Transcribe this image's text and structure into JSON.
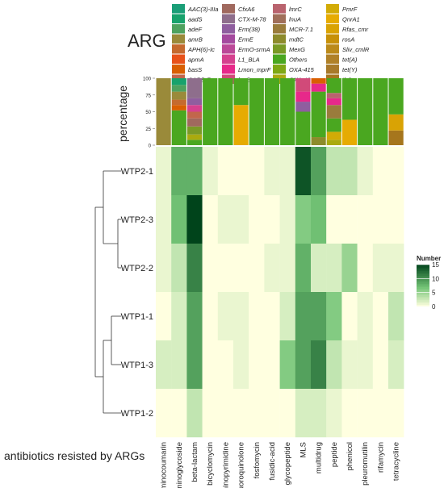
{
  "chart_data": {
    "type": "heatmap",
    "legend_title": "ARG",
    "y_title": "percentage",
    "x_title": "antibiotics resisted by ARGs",
    "categories": [
      "aminocoumarin",
      "aminoglycoside",
      "beta-lactam",
      "bicyclomycin",
      "diaminopyrimidine",
      "fluoroquinolone",
      "fosfomycin",
      "fusidic-acid",
      "glycopeptide",
      "MLS",
      "multidrug",
      "peptide",
      "phenicol",
      "pleuromutilin",
      "rifamycin",
      "tetracycline"
    ],
    "samples": [
      "WTP2-1",
      "WTP2-3",
      "WTP2-2",
      "WTP1-1",
      "WTP1-3",
      "WTP1-2"
    ],
    "values": [
      [
        1,
        8,
        8,
        1,
        0,
        0,
        0,
        1,
        1,
        14,
        9,
        3,
        3,
        1,
        0,
        0
      ],
      [
        1,
        7,
        15,
        0,
        1,
        1,
        0,
        0,
        1,
        6,
        7,
        0,
        0,
        0,
        0,
        0
      ],
      [
        1,
        3,
        11,
        0,
        0,
        0,
        0,
        1,
        1,
        8,
        2,
        2,
        5,
        0,
        1,
        1
      ],
      [
        0,
        2,
        9,
        0,
        1,
        1,
        0,
        0,
        2,
        9,
        9,
        6,
        0,
        1,
        0,
        3
      ],
      [
        2,
        2,
        9,
        0,
        0,
        1,
        0,
        0,
        6,
        9,
        11,
        3,
        1,
        1,
        0,
        2
      ],
      [
        0,
        0,
        3,
        0,
        0,
        0,
        0,
        0,
        0,
        2,
        2,
        1,
        0,
        0,
        0,
        0
      ]
    ],
    "color_scale": {
      "title": "Number",
      "ticks": [
        0,
        5,
        10,
        15
      ],
      "min": 0,
      "max": 15,
      "low": "#ffffe0",
      "high": "#00441b"
    },
    "bar_axis": {
      "ticks": [
        0,
        25,
        50,
        75,
        100
      ]
    },
    "genes": [
      {
        "name": "AAC(3)-IIIa",
        "color": "#1a9e77"
      },
      {
        "name": "aadS",
        "color": "#17a26c"
      },
      {
        "name": "adeF",
        "color": "#4ea25f"
      },
      {
        "name": "amrB",
        "color": "#9a8a3a"
      },
      {
        "name": "APH(6)-Ic",
        "color": "#c56a2f"
      },
      {
        "name": "apmA",
        "color": "#e8521a"
      },
      {
        "name": "basS",
        "color": "#d95f02"
      },
      {
        "name": "CARB-7",
        "color": "#c2664c"
      },
      {
        "name": "CfxA6",
        "color": "#a0695e"
      },
      {
        "name": "CTX-M-78",
        "color": "#8e6e8c"
      },
      {
        "name": "Erm(38)",
        "color": "#8f5e9f"
      },
      {
        "name": "ErmE",
        "color": "#a4499e"
      },
      {
        "name": "ErmO-srmA",
        "color": "#bb4898"
      },
      {
        "name": "L1_BLA",
        "color": "#d5418f"
      },
      {
        "name": "Lmon_mprF",
        "color": "#e7298a"
      },
      {
        "name": "lmrB",
        "color": "#d14a79"
      },
      {
        "name": "lmrC",
        "color": "#b9636e"
      },
      {
        "name": "lnuA",
        "color": "#a06f5a"
      },
      {
        "name": "MCR-7.1",
        "color": "#9a7c3c"
      },
      {
        "name": "mdtC",
        "color": "#8d8b2c"
      },
      {
        "name": "MexG",
        "color": "#7a9a26"
      },
      {
        "name": "Others",
        "color": "#4aa720"
      },
      {
        "name": "OXA-415",
        "color": "#7fa814"
      },
      {
        "name": "OXA-42",
        "color": "#aaaa0f"
      },
      {
        "name": "PmrF",
        "color": "#d2ab06"
      },
      {
        "name": "QnrA1",
        "color": "#e6ab02"
      },
      {
        "name": "Rfas_cmr",
        "color": "#d9a304"
      },
      {
        "name": "rosA",
        "color": "#c79109"
      },
      {
        "name": "Sliv_cmlR",
        "color": "#bb8a1a"
      },
      {
        "name": "tet(A)",
        "color": "#b08128"
      },
      {
        "name": "tet(Y)",
        "color": "#a87a2a"
      },
      {
        "name": "tlrC",
        "color": "#a6761d"
      }
    ],
    "stacks": [
      [
        [
          "amrB",
          100
        ]
      ],
      [
        [
          "Others",
          52
        ],
        [
          "basS",
          8
        ],
        [
          "APH(6)-Ic",
          8
        ],
        [
          "amrB",
          12
        ],
        [
          "adeF",
          10
        ],
        [
          "aadS",
          10
        ]
      ],
      [
        [
          "Others",
          8
        ],
        [
          "OXA-42",
          8
        ],
        [
          "MexG",
          12
        ],
        [
          "CfxA6",
          12
        ],
        [
          "CARB-7",
          10
        ],
        [
          "L1_BLA",
          10
        ],
        [
          "Erm(38)",
          10
        ],
        [
          "CTX-M-78",
          30
        ]
      ],
      [
        [
          "Others",
          100
        ]
      ],
      [
        [
          "Others",
          100
        ]
      ],
      [
        [
          "QnrA1",
          60
        ],
        [
          "Others",
          40
        ]
      ],
      [
        [
          "Others",
          100
        ]
      ],
      [
        [
          "Others",
          100
        ]
      ],
      [
        [
          "Others",
          100
        ]
      ],
      [
        [
          "Others",
          50
        ],
        [
          "Erm(38)",
          15
        ],
        [
          "Lmon_mprF",
          15
        ],
        [
          "lmrB",
          20
        ]
      ],
      [
        [
          "mdtC",
          12
        ],
        [
          "Others",
          68
        ],
        [
          "Lmon_mprF",
          12
        ],
        [
          "basS",
          8
        ]
      ],
      [
        [
          "OXA-42",
          8
        ],
        [
          "PmrF",
          12
        ],
        [
          "Others",
          20
        ],
        [
          "MCR-7.1",
          20
        ],
        [
          "Lmon_mprF",
          10
        ],
        [
          "lmrC",
          8
        ],
        [
          "Others",
          22
        ]
      ],
      [
        [
          "QnrA1",
          38
        ],
        [
          "Others",
          62
        ]
      ],
      [
        [
          "Others",
          100
        ]
      ],
      [
        [
          "Others",
          100
        ]
      ],
      [
        [
          "tlrC",
          22
        ],
        [
          "Rfas_cmr",
          24
        ],
        [
          "Others",
          54
        ]
      ]
    ]
  }
}
